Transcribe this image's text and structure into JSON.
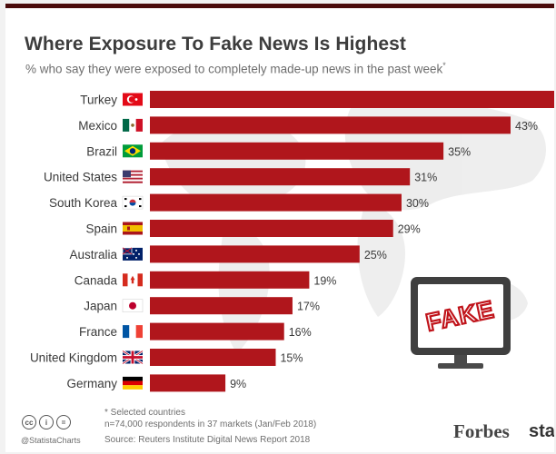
{
  "chart_data": {
    "type": "bar",
    "orientation": "horizontal",
    "title": "Where Exposure To Fake News Is Highest",
    "subtitle": "% who say they were exposed to completely made-up news in the past week",
    "subtitle_mark": "*",
    "categories": [
      "Turkey",
      "Mexico",
      "Brazil",
      "United States",
      "South Korea",
      "Spain",
      "Australia",
      "Canada",
      "Japan",
      "France",
      "United Kingdom",
      "Germany"
    ],
    "values": [
      null,
      43,
      35,
      31,
      30,
      29,
      25,
      19,
      17,
      16,
      15,
      9
    ],
    "value_labels": [
      "",
      "43%",
      "35%",
      "31%",
      "30%",
      "29%",
      "25%",
      "19%",
      "17%",
      "16%",
      "15%",
      "9%"
    ],
    "xlim": [
      0,
      43
    ],
    "bar_color": "#b0161c",
    "grid": false,
    "legend": "none"
  },
  "footer": {
    "note": "* Selected countries",
    "sample": "n=74,000 respondents in 37 markets (Jan/Feb 2018)",
    "source": "Source: Reuters Institute Digital News Report 2018",
    "handle": "@StatistaCharts",
    "brand_forbes": "Forbes",
    "brand_statista": "stat"
  },
  "illustration": {
    "monitor_text": "FAKE"
  },
  "icons": {
    "flags": [
      "turkey-flag-icon",
      "mexico-flag-icon",
      "brazil-flag-icon",
      "united-states-flag-icon",
      "south-korea-flag-icon",
      "spain-flag-icon",
      "australia-flag-icon",
      "canada-flag-icon",
      "japan-flag-icon",
      "france-flag-icon",
      "united-kingdom-flag-icon",
      "germany-flag-icon"
    ],
    "license": [
      "cc-icon",
      "by-icon",
      "nd-icon"
    ]
  },
  "colors": {
    "bar": "#b0161c",
    "top_rule": "#4b0c0c",
    "fake_stamp": "#c0131a"
  }
}
